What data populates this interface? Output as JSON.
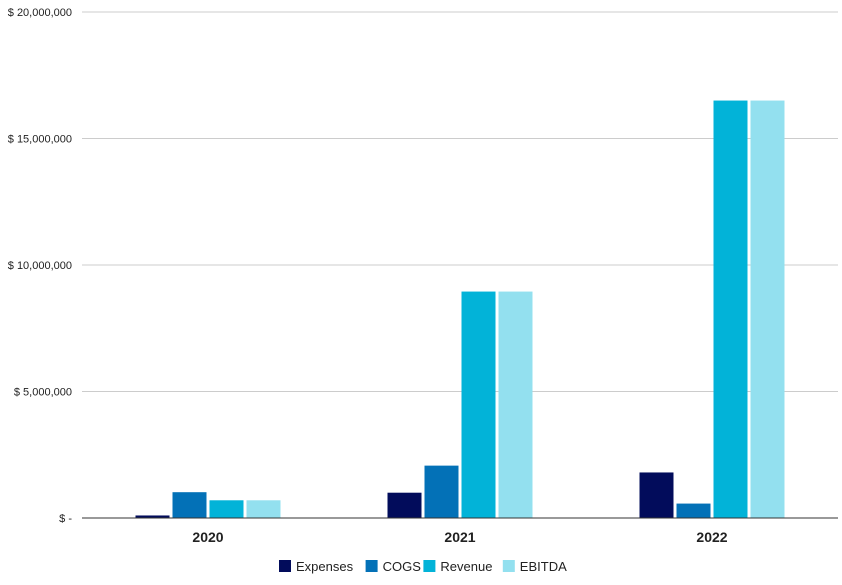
{
  "chart_data": {
    "type": "bar",
    "categories": [
      "2020",
      "2021",
      "2022"
    ],
    "series": [
      {
        "name": "Expenses",
        "color": "#020c5b",
        "values": [
          100000,
          1000000,
          1800000
        ]
      },
      {
        "name": "COGS",
        "color": "#0371b7",
        "values": [
          1020000,
          2070000,
          570000
        ]
      },
      {
        "name": "Revenue",
        "color": "#02b3d8",
        "values": [
          700000,
          8950000,
          16500000
        ]
      },
      {
        "name": "EBITDA",
        "color": "#93e0ef",
        "values": [
          700000,
          8950000,
          16500000
        ]
      }
    ],
    "yticks": [
      0,
      5000000,
      10000000,
      15000000,
      20000000
    ],
    "ytick_labels": [
      "$ -",
      "$ 5,000,000",
      "$ 10,000,000",
      "$ 15,000,000",
      "$ 20,000,000"
    ],
    "ylim": [
      0,
      20000000
    ],
    "grid": true,
    "legend_position": "bottom",
    "title": "",
    "xlabel": "",
    "ylabel": ""
  }
}
